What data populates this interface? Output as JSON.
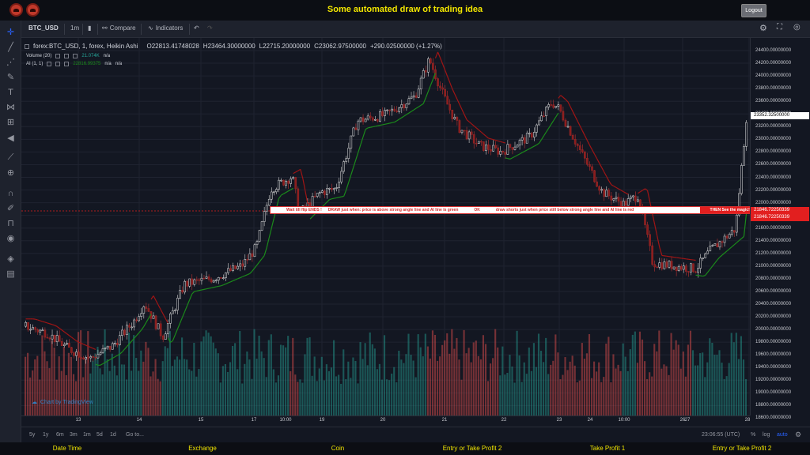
{
  "app": {
    "title": "Some automated draw of trading idea",
    "logout": "Logout"
  },
  "toolbar": {
    "symbol": "BTC_USD",
    "interval": "1m",
    "compare": "Compare",
    "indicators": "Indicators"
  },
  "legend": {
    "main": "forex:BTC_USD, 1, forex, Heikin Ashi",
    "open": "O22813.41748028",
    "high": "H23464.30000000",
    "low": "L22715.20000000",
    "close": "C23062.97500000",
    "change": "+290.02500000 (+1.27%)",
    "volume_label": "Volume (20)",
    "volume_value": "21.074K",
    "volume_na": "n/a",
    "ai_label": "AI (1, 1)",
    "ai_value": "22816.99375",
    "ai_na1": "n/a",
    "ai_na2": "n/a"
  },
  "annotation": {
    "t1": "Wait till flip ENDS  !",
    "t2": "DRAW just when:  price is above strong angle line and AI line is green",
    "t3": "OK",
    "t4": "draw shorts just when price still below strong angle line and AI line is red",
    "t5": "THEN See the magic!!"
  },
  "price_tags": {
    "current": "23352.32500000",
    "line1": "21846.72250339",
    "line2": "21846.72250339"
  },
  "y_ticks": [
    "24400.00000000",
    "24200.00000000",
    "24000.00000000",
    "23800.00000000",
    "23600.00000000",
    "23400.00000000",
    "23200.00000000",
    "23000.00000000",
    "22800.00000000",
    "22600.00000000",
    "22400.00000000",
    "22200.00000000",
    "22000.00000000",
    "21800.00000000",
    "21600.00000000",
    "21400.00000000",
    "21200.00000000",
    "21000.00000000",
    "20800.00000000",
    "20600.00000000",
    "20400.00000000",
    "20200.00000000",
    "20000.00000000",
    "19800.00000000",
    "19600.00000000",
    "19400.00000000",
    "19200.00000000",
    "19000.00000000",
    "18800.00000000",
    "18600.00000000"
  ],
  "x_ticks": [
    "13",
    "14",
    "15",
    "17",
    "10:00",
    "19",
    "20",
    "21",
    "22",
    "23",
    "24",
    "10:00",
    "26",
    "27",
    "28"
  ],
  "footer": {
    "ranges": [
      "5y",
      "1y",
      "6m",
      "3m",
      "1m",
      "5d",
      "1d"
    ],
    "goto": "Go to...",
    "time": "23:06:55 (UTC)",
    "pct": "%",
    "log": "log",
    "auto": "auto"
  },
  "bottom": [
    "Date Time",
    "Exchange",
    "Coin",
    "Entry or Take Profit 2",
    "Take Profit 1",
    "Entry or Take Profit 2"
  ],
  "watermark": "Chart by TradingView",
  "colors": {
    "up": "#26a69a",
    "down": "#ef5350",
    "ai_green": "#1b8a1b",
    "ai_red": "#a01515",
    "accent": "#f2e600"
  },
  "chart_data": {
    "type": "line",
    "y_range": [
      18550,
      24620
    ],
    "price_path": [
      [
        0,
        19970
      ],
      [
        0.03,
        19860
      ],
      [
        0.06,
        19600
      ],
      [
        0.09,
        19450
      ],
      [
        0.12,
        19650
      ],
      [
        0.15,
        20050
      ],
      [
        0.165,
        20350
      ],
      [
        0.19,
        19800
      ],
      [
        0.22,
        20650
      ],
      [
        0.26,
        20750
      ],
      [
        0.3,
        20950
      ],
      [
        0.32,
        21250
      ],
      [
        0.34,
        22200
      ],
      [
        0.37,
        22400
      ],
      [
        0.38,
        21800
      ],
      [
        0.41,
        22150
      ],
      [
        0.43,
        22200
      ],
      [
        0.46,
        23300
      ],
      [
        0.5,
        23400
      ],
      [
        0.54,
        23700
      ],
      [
        0.56,
        24300
      ],
      [
        0.58,
        23700
      ],
      [
        0.6,
        23200
      ],
      [
        0.63,
        22900
      ],
      [
        0.66,
        22800
      ],
      [
        0.7,
        23050
      ],
      [
        0.73,
        23600
      ],
      [
        0.74,
        23500
      ],
      [
        0.77,
        22800
      ],
      [
        0.8,
        22150
      ],
      [
        0.83,
        21950
      ],
      [
        0.85,
        22100
      ],
      [
        0.87,
        21000
      ],
      [
        0.9,
        20950
      ],
      [
        0.93,
        20900
      ],
      [
        0.95,
        21200
      ],
      [
        0.97,
        21400
      ],
      [
        0.985,
        21550
      ],
      [
        1.0,
        23350
      ]
    ]
  }
}
